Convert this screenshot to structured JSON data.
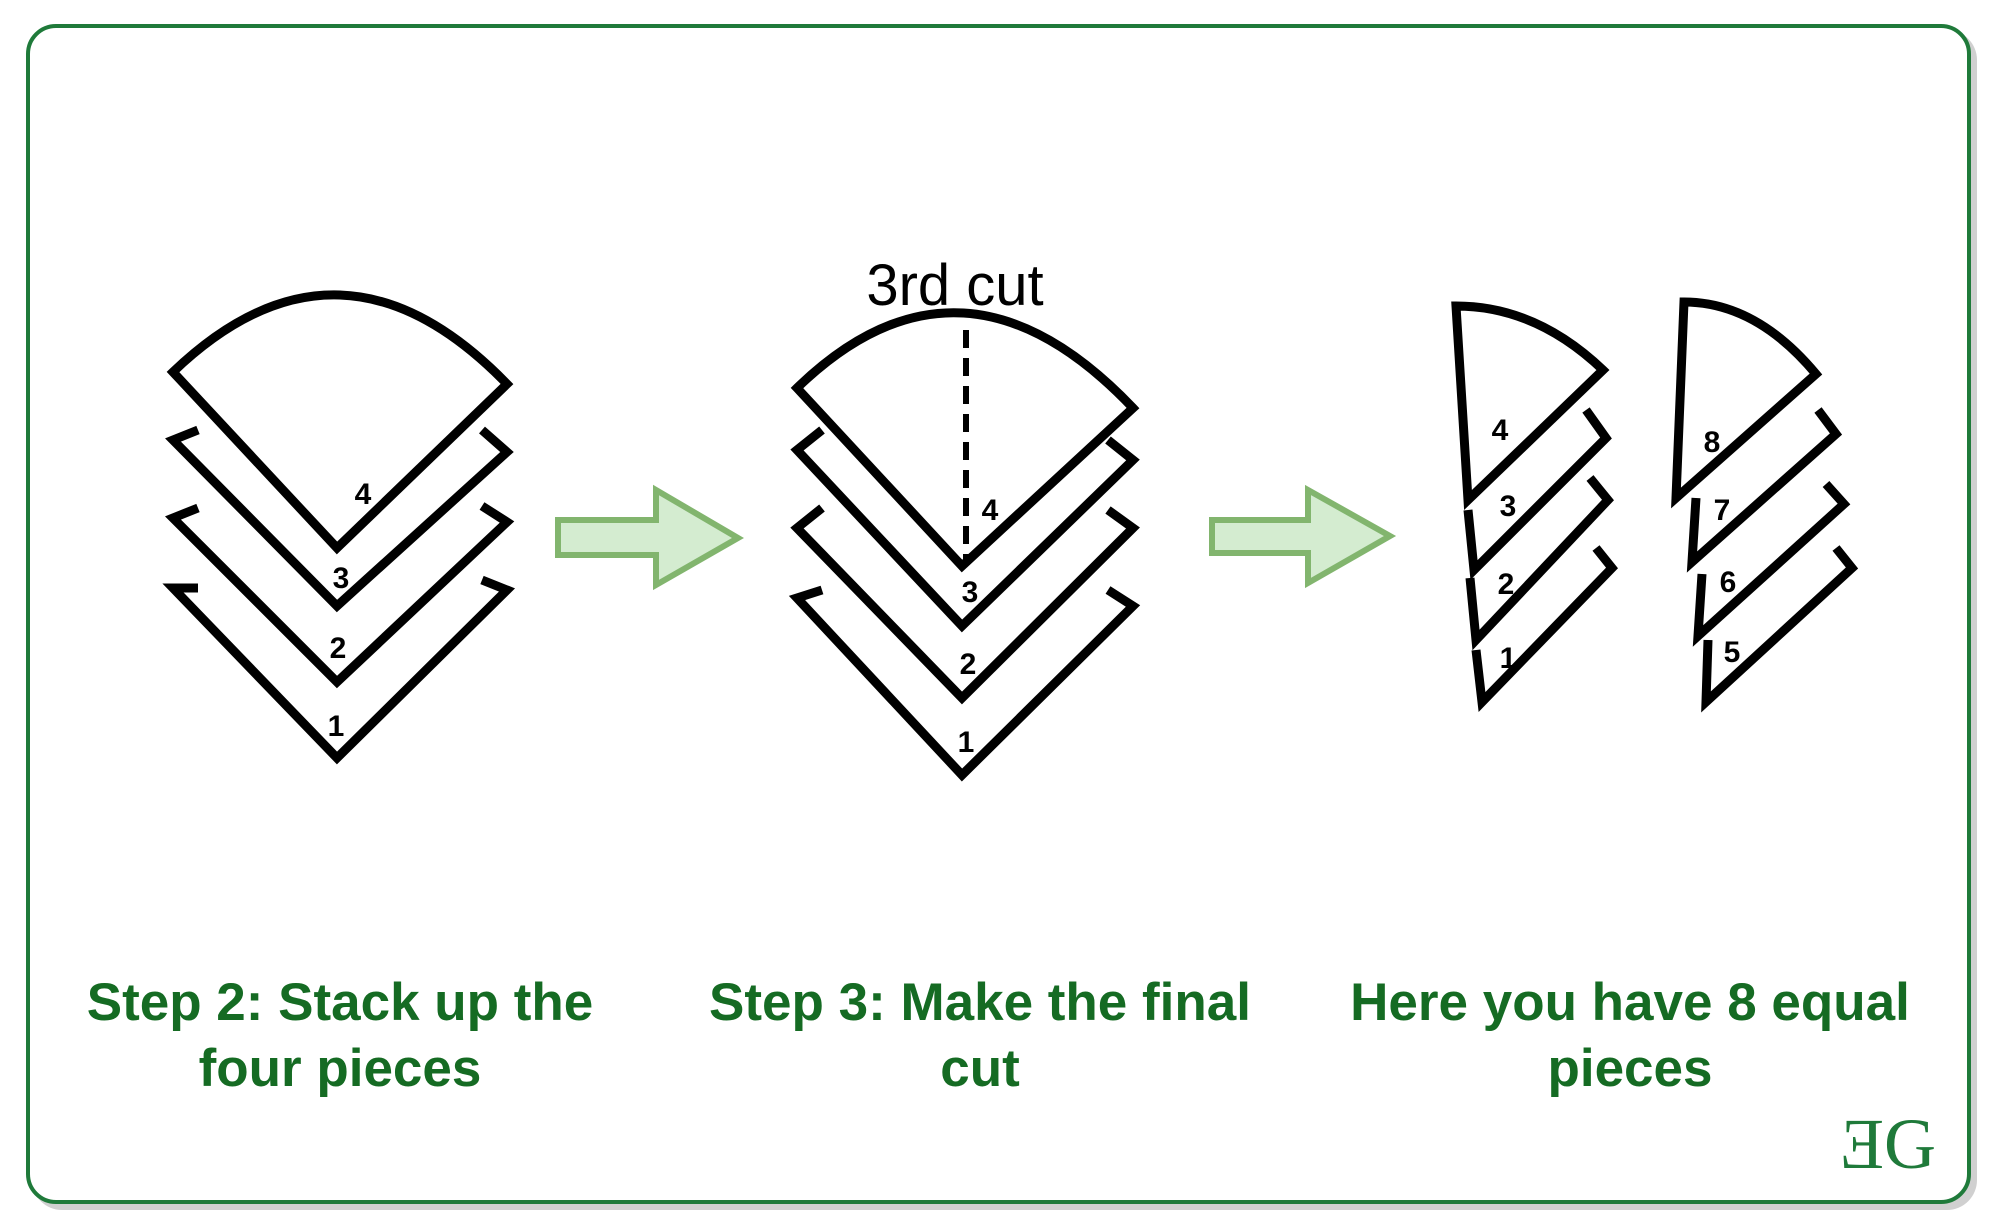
{
  "step2": {
    "caption_line1": "Step 2: Stack up the",
    "caption_line2": "four pieces",
    "layers": [
      "1",
      "2",
      "3",
      "4"
    ]
  },
  "step3": {
    "cut_label": "3rd cut",
    "caption_line1": "Step 3: Make the final",
    "caption_line2": "cut",
    "layers": [
      "1",
      "2",
      "3",
      "4"
    ]
  },
  "result": {
    "caption_line1": "Here you have 8 equal",
    "caption_line2": "pieces",
    "left_stack": [
      "1",
      "2",
      "3",
      "4"
    ],
    "right_stack": [
      "5",
      "6",
      "7",
      "8"
    ]
  },
  "logo": {
    "text": "ƎG"
  },
  "colors": {
    "frame": "#1f7a3a",
    "caption": "#156b23",
    "arrow_fill": "#d4ecd0",
    "arrow_stroke": "#82b56e",
    "shape_stroke": "#000000"
  },
  "icons": [
    "right-arrow-icon",
    "geeksforgeeks-logo"
  ]
}
